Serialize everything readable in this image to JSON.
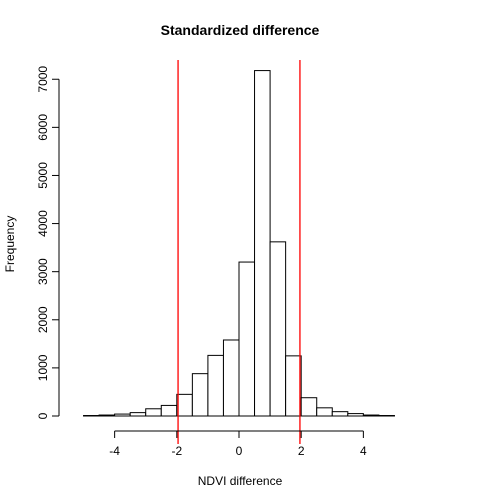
{
  "chart_data": {
    "type": "bar",
    "subtype": "histogram",
    "title": "Standardized difference",
    "xlabel": "NDVI difference",
    "ylabel": "Frequency",
    "bin_width": 0.5,
    "bins": [
      {
        "start": -5.5,
        "end": -5.0,
        "count": 0
      },
      {
        "start": -5.0,
        "end": -4.5,
        "count": 10
      },
      {
        "start": -4.5,
        "end": -4.0,
        "count": 20
      },
      {
        "start": -4.0,
        "end": -3.5,
        "count": 40
      },
      {
        "start": -3.5,
        "end": -3.0,
        "count": 70
      },
      {
        "start": -3.0,
        "end": -2.5,
        "count": 150
      },
      {
        "start": -2.5,
        "end": -2.0,
        "count": 220
      },
      {
        "start": -2.0,
        "end": -1.5,
        "count": 450
      },
      {
        "start": -1.5,
        "end": -1.0,
        "count": 880
      },
      {
        "start": -1.0,
        "end": -0.5,
        "count": 1260
      },
      {
        "start": -0.5,
        "end": 0.0,
        "count": 1580
      },
      {
        "start": 0.0,
        "end": 0.5,
        "count": 3200
      },
      {
        "start": 0.5,
        "end": 1.0,
        "count": 7180
      },
      {
        "start": 1.0,
        "end": 1.5,
        "count": 3620
      },
      {
        "start": 1.5,
        "end": 2.0,
        "count": 1250
      },
      {
        "start": 2.0,
        "end": 2.5,
        "count": 380
      },
      {
        "start": 2.5,
        "end": 3.0,
        "count": 170
      },
      {
        "start": 3.0,
        "end": 3.5,
        "count": 90
      },
      {
        "start": 3.5,
        "end": 4.0,
        "count": 50
      },
      {
        "start": 4.0,
        "end": 4.5,
        "count": 20
      },
      {
        "start": 4.5,
        "end": 5.0,
        "count": 10
      },
      {
        "start": 5.0,
        "end": 5.5,
        "count": 0
      }
    ],
    "xlim": [
      -5.5,
      5.5
    ],
    "ylim": [
      0,
      7400
    ],
    "xticks": [
      -4,
      -2,
      0,
      2,
      4
    ],
    "yticks": [
      0,
      1000,
      2000,
      3000,
      4000,
      5000,
      6000,
      7000
    ],
    "reference_lines": [
      {
        "x": -1.96,
        "color": "#ff0000"
      },
      {
        "x": 1.96,
        "color": "#ff0000"
      }
    ],
    "grid": false,
    "legend": "none",
    "colors": {
      "bar_fill": "#ffffff",
      "bar_stroke": "#000000",
      "reference": "#ff0000"
    }
  }
}
